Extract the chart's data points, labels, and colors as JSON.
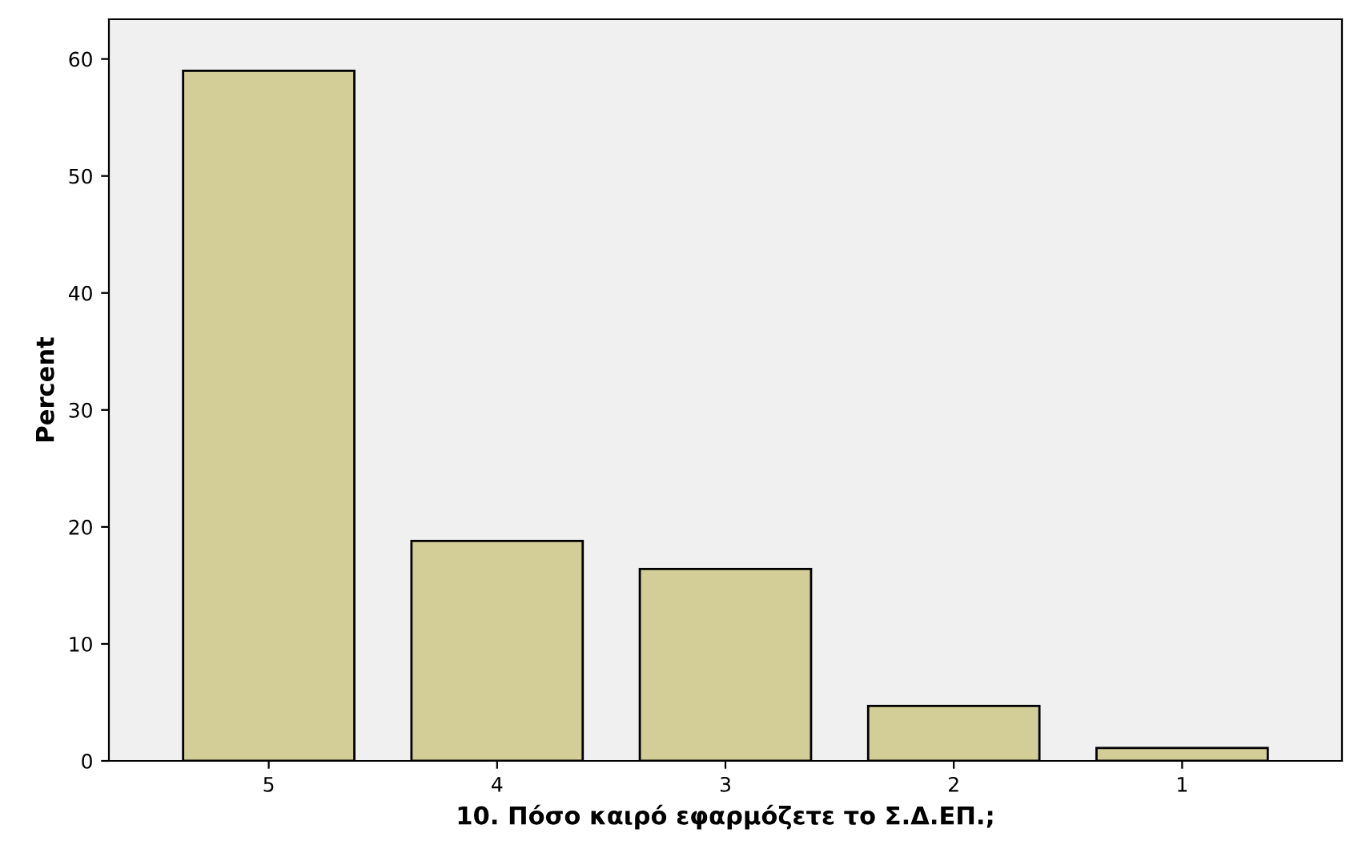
{
  "chart_data": {
    "type": "bar",
    "xlabel": "10. Πόσο καιρό εφαρμόζετε το Σ.Δ.ΕΠ.;",
    "ylabel": "Percent",
    "categories": [
      "5",
      "4",
      "3",
      "2",
      "1"
    ],
    "values": [
      59.0,
      18.8,
      16.4,
      4.7,
      1.1
    ],
    "color": "#d3ce97",
    "ylim": [
      0,
      63.4
    ],
    "yticks": [
      0,
      10,
      20,
      30,
      40,
      50,
      60
    ],
    "grid": false,
    "legend": false
  }
}
